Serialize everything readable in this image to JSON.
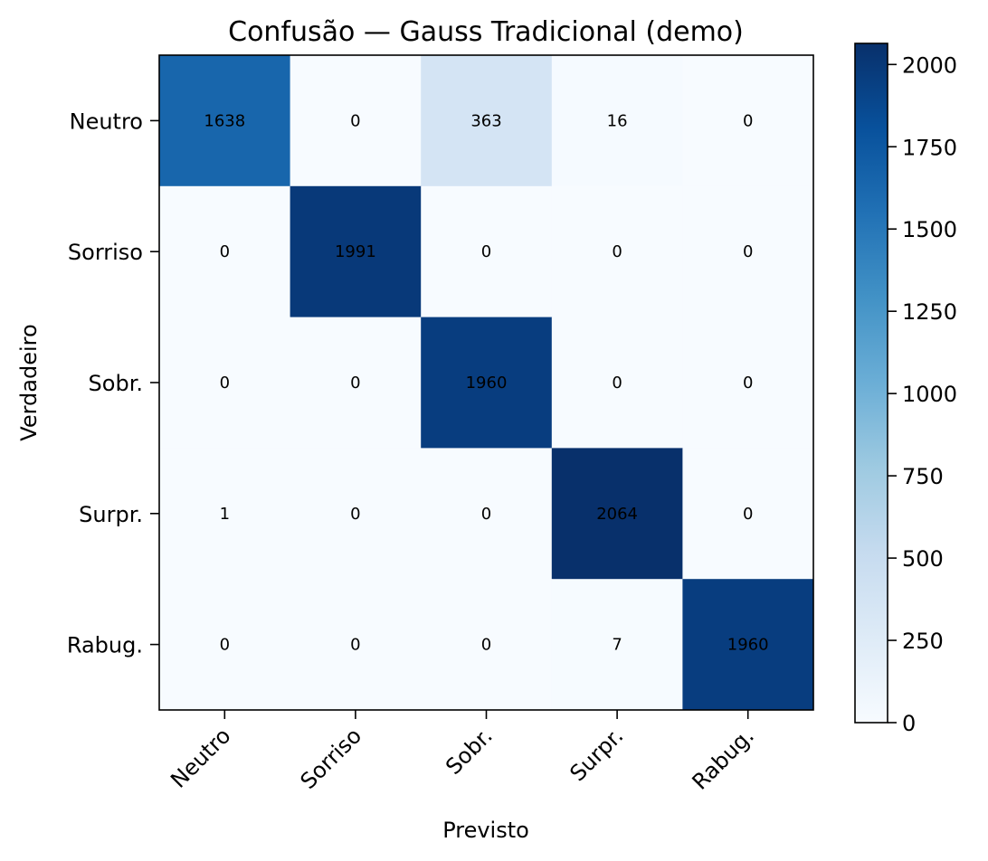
{
  "chart_data": {
    "type": "heatmap",
    "title": "Confusão — Gauss Tradicional (demo)",
    "xlabel": "Previsto",
    "ylabel": "Verdadeiro",
    "x_categories": [
      "Neutro",
      "Sorriso",
      "Sobr.",
      "Surpr.",
      "Rabug."
    ],
    "y_categories": [
      "Neutro",
      "Sorriso",
      "Sobr.",
      "Surpr.",
      "Rabug."
    ],
    "values": [
      [
        1638,
        0,
        363,
        16,
        0
      ],
      [
        0,
        1991,
        0,
        0,
        0
      ],
      [
        0,
        0,
        1960,
        0,
        0
      ],
      [
        1,
        0,
        0,
        2064,
        0
      ],
      [
        0,
        0,
        0,
        7,
        1960
      ]
    ],
    "colorbar": {
      "vmin": 0,
      "vmax": 2064,
      "ticks": [
        0,
        250,
        500,
        750,
        1000,
        1250,
        1500,
        1750,
        2000
      ]
    },
    "colormap": "Blues",
    "colors": [
      "#f7fbff",
      "#deebf7",
      "#c6dbef",
      "#9ecae1",
      "#6baed6",
      "#4292c6",
      "#2171b5",
      "#08519c",
      "#08306b"
    ]
  }
}
